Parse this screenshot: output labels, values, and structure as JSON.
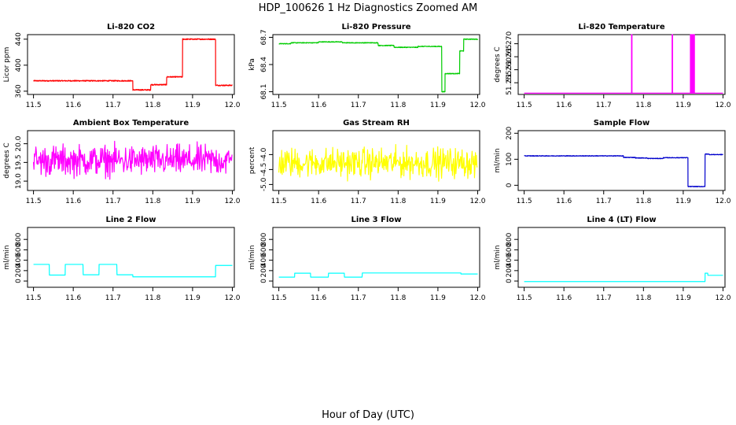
{
  "figure": {
    "title": "HDP_100626  1 Hz Diagnostics Zoomed AM",
    "xlabel": "Hour of Day (UTC)"
  },
  "chart_data": [
    {
      "type": "line",
      "title": "Li-820 CO2",
      "ylabel": "Licor ppm",
      "color": "#ff0000",
      "xlim": [
        11.485,
        12.005
      ],
      "ylim": [
        355,
        447
      ],
      "xticks": [
        "11.5",
        "11.6",
        "11.7",
        "11.8",
        "11.9",
        "12.0"
      ],
      "yticks": [
        "360",
        "400",
        "440"
      ],
      "noise": 0.8,
      "segments": [
        [
          11.5,
          11.75,
          376
        ],
        [
          11.75,
          11.795,
          362
        ],
        [
          11.795,
          11.835,
          370
        ],
        [
          11.835,
          11.875,
          382
        ],
        [
          11.875,
          11.958,
          440
        ],
        [
          11.958,
          12.0,
          369
        ]
      ]
    },
    {
      "type": "line",
      "title": "Li-820 Pressure",
      "ylabel": "kPa",
      "color": "#00cc00",
      "xlim": [
        11.485,
        12.005
      ],
      "ylim": [
        68.07,
        68.73
      ],
      "xticks": [
        "11.5",
        "11.6",
        "11.7",
        "11.8",
        "11.9",
        "12.0"
      ],
      "yticks": [
        "68.1",
        "68.4",
        "68.7"
      ],
      "noise": 0.004,
      "segments": [
        [
          11.5,
          11.53,
          68.63
        ],
        [
          11.53,
          11.6,
          68.64
        ],
        [
          11.6,
          11.66,
          68.65
        ],
        [
          11.66,
          11.75,
          68.64
        ],
        [
          11.75,
          11.79,
          68.61
        ],
        [
          11.79,
          11.85,
          68.59
        ],
        [
          11.85,
          11.91,
          68.6
        ],
        [
          11.91,
          11.918,
          68.1
        ],
        [
          11.918,
          11.955,
          68.3
        ],
        [
          11.955,
          11.965,
          68.55
        ],
        [
          11.965,
          12.0,
          68.68
        ]
      ]
    },
    {
      "type": "line",
      "title": "Li-820 Temperature",
      "ylabel": "degrees C",
      "color": "#ff00ff",
      "xlim": [
        11.485,
        12.005
      ],
      "ylim": [
        51.2505,
        51.2735
      ],
      "xticks": [
        "11.5",
        "11.6",
        "11.7",
        "11.8",
        "11.9",
        "12.0"
      ],
      "yticks": [
        "51.255",
        "51.260",
        "51.265",
        "51.270"
      ],
      "base": 51.251,
      "spike_value": 51.2735,
      "spikes": [
        11.77,
        11.872,
        11.918,
        11.921,
        11.924,
        11.927
      ]
    },
    {
      "type": "line",
      "title": "Ambient Box Temperature",
      "ylabel": "degrees C",
      "color": "#ff00ff",
      "xlim": [
        11.485,
        12.005
      ],
      "ylim": [
        18.75,
        20.35
      ],
      "xticks": [
        "11.5",
        "11.6",
        "11.7",
        "11.8",
        "11.9",
        "12.0"
      ],
      "yticks": [
        "19.0",
        "19.5",
        "20.0"
      ],
      "noise_band": [
        18.95,
        20.15
      ]
    },
    {
      "type": "line",
      "title": "Gas Stream RH",
      "ylabel": "percent",
      "color": "#ffff00",
      "xlim": [
        11.485,
        12.005
      ],
      "ylim": [
        -5.2,
        -3.2
      ],
      "xticks": [
        "11.5",
        "11.6",
        "11.7",
        "11.8",
        "11.9",
        "12.0"
      ],
      "yticks": [
        "-5.0",
        "-4.5",
        "-4.0"
      ],
      "noise_band": [
        -5.0,
        -3.55
      ]
    },
    {
      "type": "line",
      "title": "Sample Flow",
      "ylabel": "ml/min",
      "color": "#0000cc",
      "xlim": [
        11.485,
        12.005
      ],
      "ylim": [
        -20,
        210
      ],
      "xticks": [
        "11.5",
        "11.6",
        "11.7",
        "11.8",
        "11.9",
        "12.0"
      ],
      "yticks": [
        "0",
        "100",
        "200"
      ],
      "noise": 1.2,
      "segments": [
        [
          11.5,
          11.75,
          113
        ],
        [
          11.75,
          11.78,
          107
        ],
        [
          11.78,
          11.81,
          105
        ],
        [
          11.81,
          11.85,
          103
        ],
        [
          11.85,
          11.912,
          106
        ],
        [
          11.912,
          11.955,
          -5
        ],
        [
          11.955,
          11.965,
          120
        ],
        [
          11.965,
          12.0,
          118
        ]
      ]
    },
    {
      "type": "line",
      "title": "Line 2 Flow",
      "ylabel": "ml/min",
      "color": "#00ffff",
      "xlim": [
        11.485,
        12.005
      ],
      "ylim": [
        -120,
        1030
      ],
      "xticks": [
        "11.5",
        "11.6",
        "11.7",
        "11.8",
        "11.9",
        "12.0"
      ],
      "yticks": [
        "0",
        "200",
        "400",
        "600",
        "800"
      ],
      "segments": [
        [
          11.5,
          11.54,
          320
        ],
        [
          11.54,
          11.58,
          115
        ],
        [
          11.58,
          11.625,
          320
        ],
        [
          11.625,
          11.665,
          120
        ],
        [
          11.665,
          11.71,
          320
        ],
        [
          11.71,
          11.75,
          120
        ],
        [
          11.75,
          11.958,
          80
        ],
        [
          11.958,
          12.0,
          300
        ]
      ]
    },
    {
      "type": "line",
      "title": "Line 3 Flow",
      "ylabel": "ml/min",
      "color": "#00ffff",
      "xlim": [
        11.485,
        12.005
      ],
      "ylim": [
        -120,
        1030
      ],
      "xticks": [
        "11.5",
        "11.6",
        "11.7",
        "11.8",
        "11.9",
        "12.0"
      ],
      "yticks": [
        "0",
        "200",
        "400",
        "600",
        "800"
      ],
      "segments": [
        [
          11.5,
          11.54,
          75
        ],
        [
          11.54,
          11.58,
          150
        ],
        [
          11.58,
          11.625,
          75
        ],
        [
          11.625,
          11.665,
          150
        ],
        [
          11.665,
          11.71,
          75
        ],
        [
          11.71,
          11.958,
          155
        ],
        [
          11.958,
          12.0,
          135
        ]
      ]
    },
    {
      "type": "line",
      "title": "Line 4 (LT) Flow",
      "ylabel": "ml/min",
      "color": "#00ffff",
      "xlim": [
        11.485,
        12.005
      ],
      "ylim": [
        -120,
        1030
      ],
      "xticks": [
        "11.5",
        "11.6",
        "11.7",
        "11.8",
        "11.9",
        "12.0"
      ],
      "yticks": [
        "0",
        "200",
        "400",
        "600",
        "800"
      ],
      "segments": [
        [
          11.5,
          11.955,
          -10
        ],
        [
          11.955,
          11.962,
          150
        ],
        [
          11.962,
          12.0,
          110
        ]
      ]
    }
  ]
}
